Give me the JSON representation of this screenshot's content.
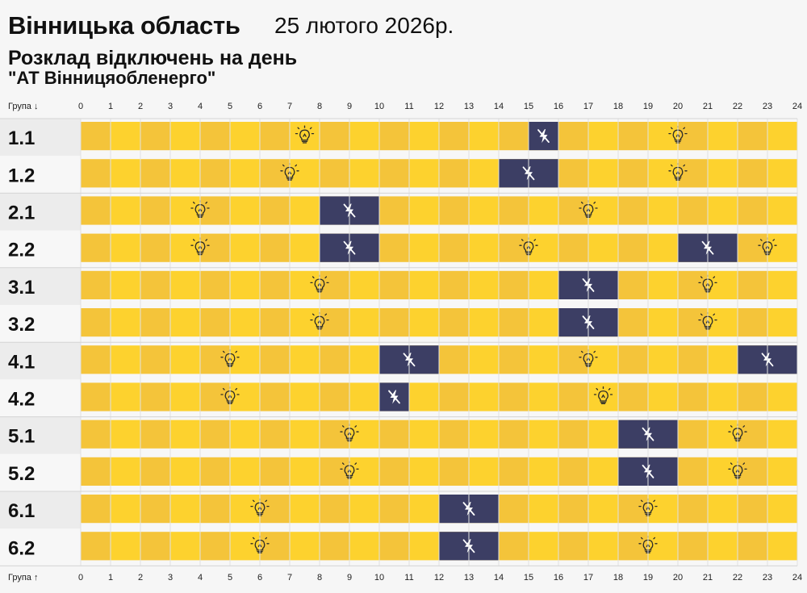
{
  "header": {
    "region": "Вінницька область",
    "date": "25 лютого 2026р.",
    "subtitle": "Розклад відключень на день",
    "company": "\"АТ Вінницяобленерго\""
  },
  "colors": {
    "on": "#fdd22e",
    "on_alt": "#f4c43a",
    "off": "#3c3e64",
    "label_bg_a": "#ececec",
    "label_bg_b": "#f7f7f7",
    "grid": "#e1e1e1",
    "icon": "#2a2a2a",
    "off_icon": "#ffffff"
  },
  "chart_data": {
    "type": "timeline",
    "x_axis_label_top": "Група ↓",
    "x_axis_label_bottom": "Група ↑",
    "xlim": [
      0,
      24
    ],
    "ticks": [
      "0",
      "1",
      "2",
      "3",
      "4",
      "5",
      "6",
      "7",
      "8",
      "9",
      "10",
      "11",
      "12",
      "13",
      "14",
      "15",
      "16",
      "17",
      "18",
      "19",
      "20",
      "21",
      "22",
      "23",
      "24"
    ],
    "groups": [
      {
        "label": "1.1",
        "outages": [
          [
            15,
            16
          ]
        ],
        "on_icons": [
          7.5,
          20
        ]
      },
      {
        "label": "1.2",
        "outages": [
          [
            14,
            16
          ]
        ],
        "on_icons": [
          7,
          20
        ]
      },
      {
        "label": "2.1",
        "outages": [
          [
            8,
            10
          ]
        ],
        "on_icons": [
          4,
          17
        ]
      },
      {
        "label": "2.2",
        "outages": [
          [
            8,
            10
          ],
          [
            20,
            22
          ]
        ],
        "on_icons": [
          4,
          15,
          23
        ]
      },
      {
        "label": "3.1",
        "outages": [
          [
            16,
            18
          ]
        ],
        "on_icons": [
          8,
          21
        ]
      },
      {
        "label": "3.2",
        "outages": [
          [
            16,
            18
          ]
        ],
        "on_icons": [
          8,
          21
        ]
      },
      {
        "label": "4.1",
        "outages": [
          [
            10,
            12
          ],
          [
            22,
            24
          ]
        ],
        "on_icons": [
          5,
          17
        ]
      },
      {
        "label": "4.2",
        "outages": [
          [
            10,
            11
          ]
        ],
        "on_icons": [
          5,
          17.5
        ]
      },
      {
        "label": "5.1",
        "outages": [
          [
            18,
            20
          ]
        ],
        "on_icons": [
          9,
          22
        ]
      },
      {
        "label": "5.2",
        "outages": [
          [
            18,
            20
          ]
        ],
        "on_icons": [
          9,
          22
        ]
      },
      {
        "label": "6.1",
        "outages": [
          [
            12,
            14
          ]
        ],
        "on_icons": [
          6,
          19
        ]
      },
      {
        "label": "6.2",
        "outages": [
          [
            12,
            14
          ]
        ],
        "on_icons": [
          6,
          19
        ]
      }
    ]
  }
}
